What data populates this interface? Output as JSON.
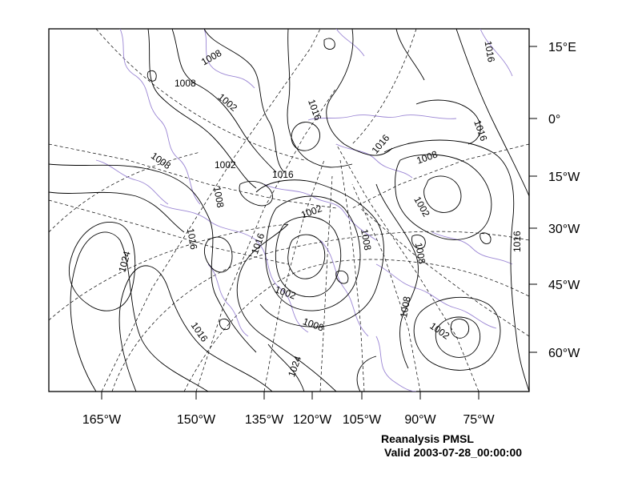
{
  "map": {
    "caption_title": "Reanalysis PMSL",
    "caption_valid": "Valid 2003-07-28_00:00:00",
    "colors": {
      "contour": "#000000",
      "coastline": "#9b86d4",
      "graticule": "#000000",
      "frame": "#000000"
    },
    "bottom_axis_labels": [
      "165°W",
      "150°W",
      "135°W",
      "120°W",
      "105°W",
      "90°W",
      "75°W"
    ],
    "right_axis_labels": [
      "15°E",
      "0°",
      "15°W",
      "30°W",
      "45°W",
      "60°W"
    ],
    "contour_labels": [
      "1008",
      "1008",
      "1002",
      "1016",
      "1016",
      "1016",
      "1016",
      "1002",
      "1016",
      "1008",
      "1008",
      "1002",
      "1008",
      "1002",
      "1016",
      "1016",
      "1008",
      "1008",
      "1024",
      "1002",
      "1008",
      "1008",
      "1002",
      "1016",
      "1024",
      "1016"
    ]
  }
}
